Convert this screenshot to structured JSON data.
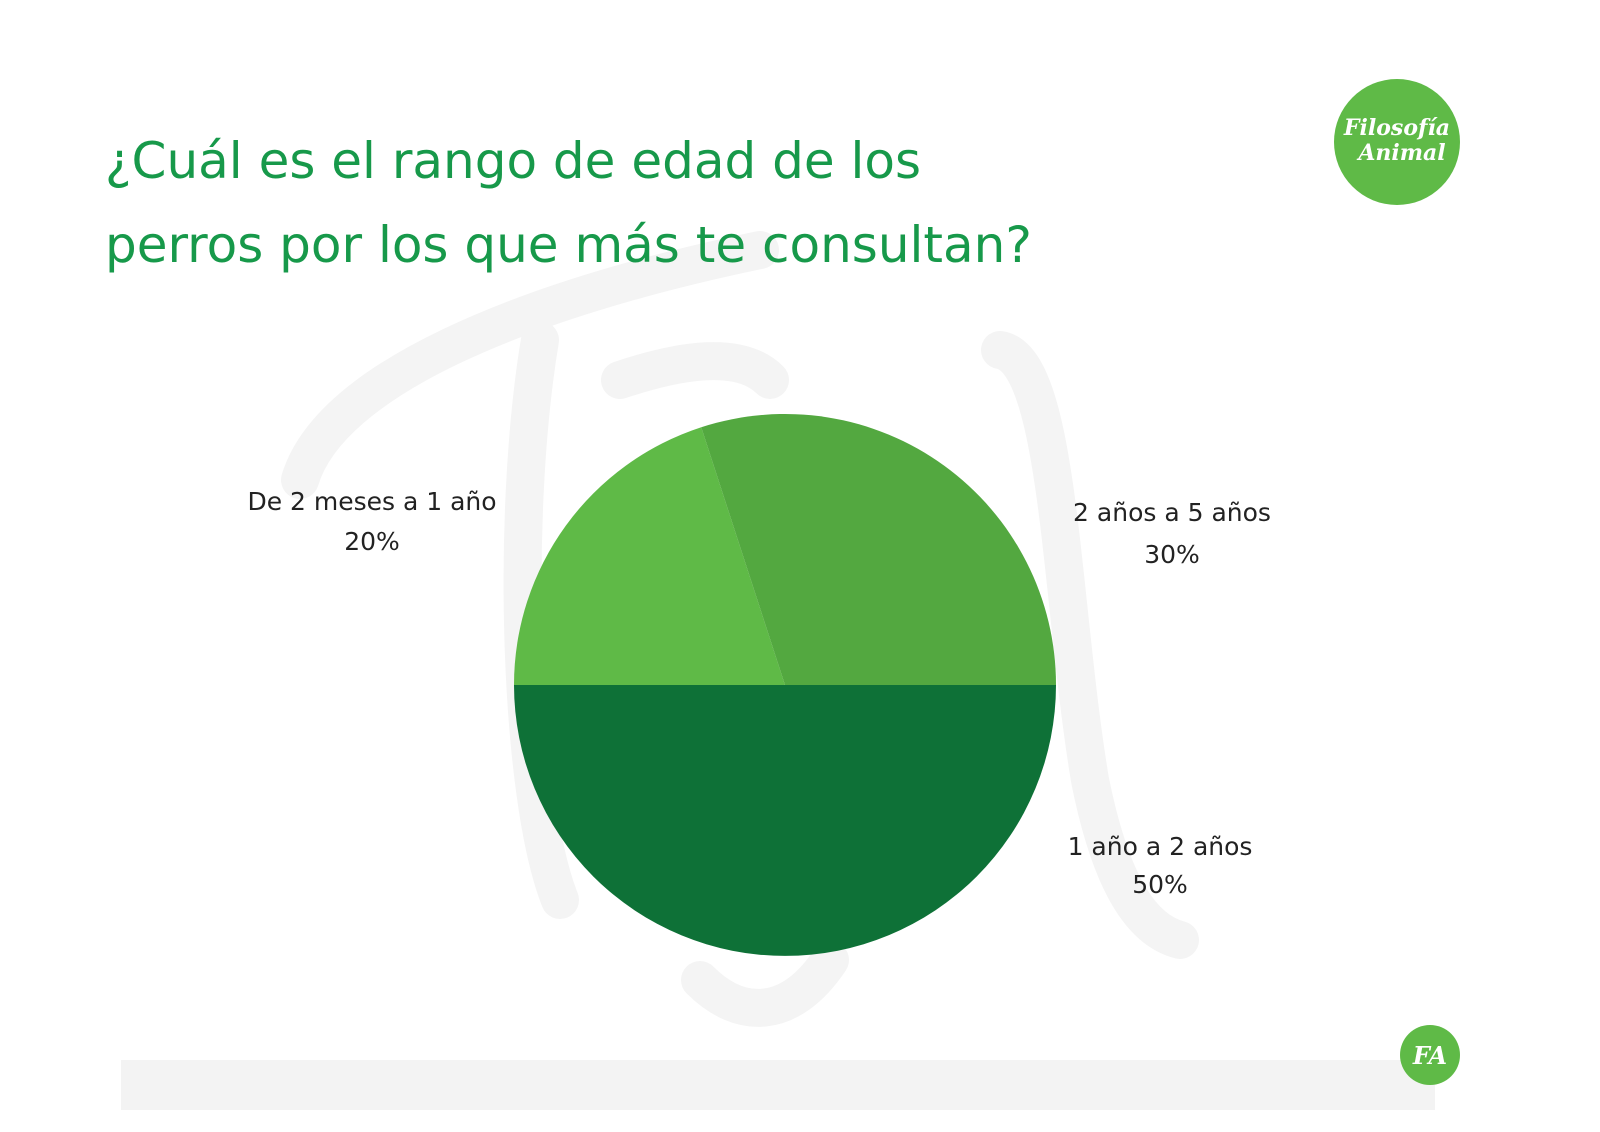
{
  "chart_data": {
    "type": "pie",
    "title": [
      "¿Cuál es el rango de edad de los",
      "perros por los que más te consultan?"
    ],
    "categories": [
      "1 año a 2 años",
      "De 2 meses a 1 año",
      "2 años a 5 años"
    ],
    "values": [
      50,
      20,
      30
    ],
    "value_labels": [
      "50%",
      "20%",
      "30%"
    ],
    "colors": [
      "#0e7137",
      "#5fba47",
      "#53a840"
    ]
  },
  "logo": [
    "Filosofía",
    "Animal"
  ],
  "badge": "FA"
}
